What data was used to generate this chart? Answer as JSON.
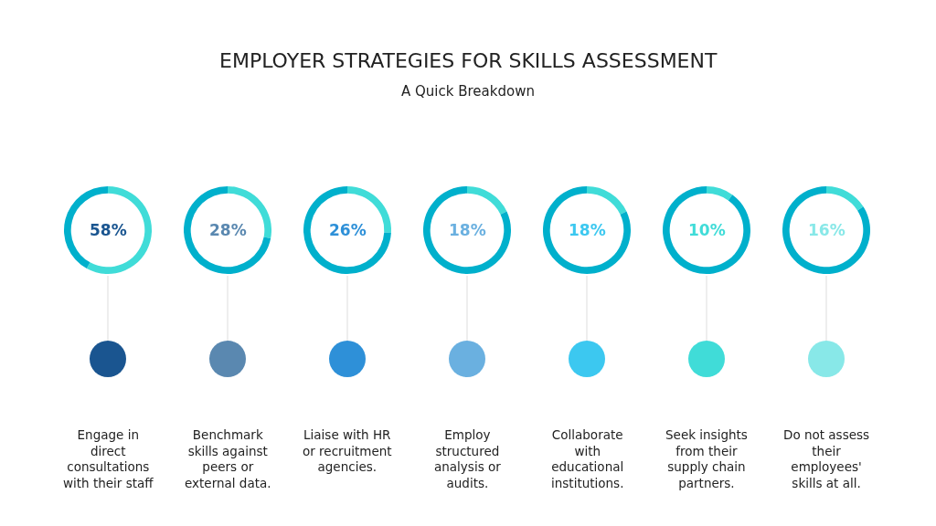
{
  "chart_data": [
    {
      "type": "other",
      "title": "EMPLOYER STRATEGIES FOR SKILLS ASSESSMENT",
      "subtitle": "A Quick Breakdown"
    },
    {
      "type": "donut",
      "title": "Engage in\ndirect\nconsultations\nwith their staff",
      "categories": [
        null,
        null
      ],
      "values": [
        58,
        42
      ],
      "colors": [
        "#40dcd8",
        "#00b0cc"
      ],
      "annotations": [
        "58%"
      ]
    },
    {
      "type": "donut",
      "title": "Benchmark\nskills against\npeers or\nexternal data.",
      "categories": [
        null,
        null
      ],
      "values": [
        28,
        72
      ],
      "colors": [
        "#40dcd8",
        "#00b0cc"
      ],
      "annotations": [
        "28%"
      ]
    },
    {
      "type": "donut",
      "title": "Liaise with HR\nor recruitment\nagencies.",
      "categories": [
        null,
        null
      ],
      "values": [
        26,
        74
      ],
      "colors": [
        "#40dcd8",
        "#00b0cc"
      ],
      "annotations": [
        "26%"
      ]
    },
    {
      "type": "donut",
      "title": "Employ\nstructured\nanalysis or\naudits.",
      "categories": [
        null,
        null
      ],
      "values": [
        18,
        82
      ],
      "colors": [
        "#40dcd8",
        "#00b0cc"
      ],
      "annotations": [
        "18%"
      ]
    },
    {
      "type": "donut",
      "title": "Collaborate\nwith\neducational\ninstitutions.",
      "categories": [
        null,
        null
      ],
      "values": [
        18,
        82
      ],
      "colors": [
        "#40dcd8",
        "#00b0cc"
      ],
      "annotations": [
        "18%"
      ]
    },
    {
      "type": "donut",
      "title": "Seek insights\nfrom their\nsupply chain\npartners.",
      "categories": [
        null,
        null
      ],
      "values": [
        10,
        90
      ],
      "colors": [
        "#40dcd8",
        "#00b0cc"
      ],
      "annotations": [
        "10%"
      ]
    },
    {
      "type": "donut",
      "title": "Do not assess\ntheir\nemployees'\nskills at all.",
      "categories": [
        null,
        null
      ],
      "values": [
        16,
        84
      ],
      "colors": [
        "#40dcd8",
        "#00b0cc"
      ],
      "annotations": [
        "16%"
      ]
    }
  ]
}
